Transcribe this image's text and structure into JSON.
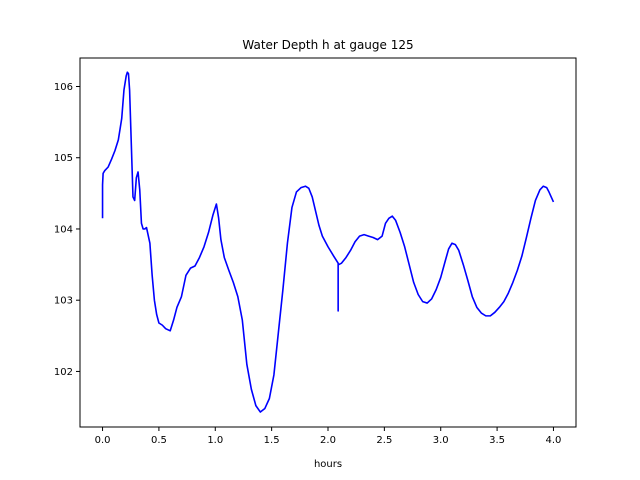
{
  "chart_data": {
    "type": "line",
    "title": "Water Depth h at gauge 125",
    "xlabel": "hours",
    "ylabel": "",
    "xlim": [
      -0.2,
      4.2
    ],
    "ylim": [
      101.22,
      106.4
    ],
    "xticks": [
      0.0,
      0.5,
      1.0,
      1.5,
      2.0,
      2.5,
      3.0,
      3.5,
      4.0
    ],
    "xtick_labels": [
      "0.0",
      "0.5",
      "1.0",
      "1.5",
      "2.0",
      "2.5",
      "3.0",
      "3.5",
      "4.0"
    ],
    "yticks": [
      102,
      103,
      104,
      105,
      106
    ],
    "ytick_labels": [
      "102",
      "103",
      "104",
      "105",
      "106"
    ],
    "grid": false,
    "series": [
      {
        "color": "#0000ff",
        "x": [
          0.0,
          0.0,
          0.0,
          0.005,
          0.02,
          0.05,
          0.08,
          0.11,
          0.14,
          0.17,
          0.19,
          0.21,
          0.22,
          0.23,
          0.24,
          0.255,
          0.27,
          0.285,
          0.3,
          0.315,
          0.33,
          0.345,
          0.36,
          0.375,
          0.39,
          0.42,
          0.44,
          0.46,
          0.48,
          0.5,
          0.53,
          0.56,
          0.6,
          0.63,
          0.66,
          0.7,
          0.74,
          0.78,
          0.82,
          0.86,
          0.9,
          0.94,
          0.98,
          1.01,
          1.03,
          1.05,
          1.08,
          1.12,
          1.16,
          1.2,
          1.24,
          1.28,
          1.32,
          1.36,
          1.4,
          1.44,
          1.48,
          1.52,
          1.56,
          1.6,
          1.64,
          1.68,
          1.72,
          1.76,
          1.8,
          1.83,
          1.86,
          1.89,
          1.92,
          1.95,
          2.0,
          2.05,
          2.09,
          2.09,
          2.09,
          2.095,
          2.12,
          2.16,
          2.2,
          2.24,
          2.28,
          2.32,
          2.36,
          2.4,
          2.44,
          2.48,
          2.51,
          2.54,
          2.57,
          2.6,
          2.64,
          2.68,
          2.72,
          2.76,
          2.8,
          2.84,
          2.88,
          2.92,
          2.96,
          3.0,
          3.04,
          3.07,
          3.1,
          3.13,
          3.16,
          3.2,
          3.24,
          3.28,
          3.32,
          3.36,
          3.4,
          3.44,
          3.48,
          3.52,
          3.56,
          3.6,
          3.64,
          3.68,
          3.72,
          3.76,
          3.8,
          3.84,
          3.88,
          3.91,
          3.94,
          3.96,
          3.98,
          4.0
        ],
        "y": [
          104.15,
          104.62,
          104.62,
          104.78,
          104.82,
          104.87,
          104.98,
          105.1,
          105.25,
          105.55,
          105.95,
          106.15,
          106.2,
          106.18,
          105.95,
          105.2,
          104.45,
          104.4,
          104.72,
          104.8,
          104.55,
          104.08,
          104.0,
          104.0,
          104.02,
          103.8,
          103.35,
          103.0,
          102.8,
          102.68,
          102.65,
          102.6,
          102.57,
          102.72,
          102.9,
          103.05,
          103.35,
          103.45,
          103.48,
          103.6,
          103.75,
          103.95,
          104.2,
          104.35,
          104.15,
          103.85,
          103.6,
          103.42,
          103.25,
          103.05,
          102.72,
          102.1,
          101.75,
          101.52,
          101.43,
          101.48,
          101.62,
          101.95,
          102.55,
          103.15,
          103.8,
          104.3,
          104.52,
          104.58,
          104.6,
          104.57,
          104.45,
          104.25,
          104.05,
          103.9,
          103.75,
          103.62,
          103.52,
          102.85,
          103.5,
          103.5,
          103.52,
          103.6,
          103.7,
          103.82,
          103.9,
          103.92,
          103.9,
          103.88,
          103.85,
          103.9,
          104.08,
          104.15,
          104.18,
          104.12,
          103.95,
          103.75,
          103.5,
          103.25,
          103.08,
          102.98,
          102.96,
          103.02,
          103.15,
          103.32,
          103.55,
          103.72,
          103.8,
          103.78,
          103.7,
          103.5,
          103.28,
          103.05,
          102.9,
          102.82,
          102.78,
          102.78,
          102.83,
          102.9,
          102.98,
          103.1,
          103.25,
          103.42,
          103.62,
          103.88,
          104.15,
          104.4,
          104.55,
          104.6,
          104.58,
          104.52,
          104.45,
          104.38
        ]
      }
    ]
  }
}
